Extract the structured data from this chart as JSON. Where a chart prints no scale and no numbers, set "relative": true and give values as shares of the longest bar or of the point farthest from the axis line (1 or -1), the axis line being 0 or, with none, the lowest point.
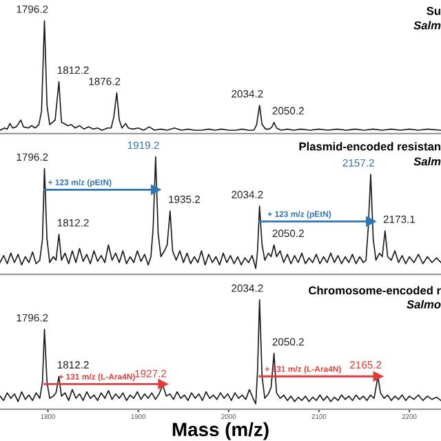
{
  "chart_data": [
    {
      "type": "line",
      "title": "Su",
      "subtitle": "Salm",
      "relative": true,
      "xlim": [
        1747,
        2235
      ],
      "tick_labels": false,
      "series": [
        {
          "color": "#1a1a1a",
          "x": [
            1747,
            1752,
            1755,
            1758,
            1761,
            1765,
            1770,
            1773,
            1778,
            1782,
            1786,
            1790,
            1793,
            1796.2,
            1799,
            1802,
            1805,
            1808,
            1812.2,
            1815,
            1818,
            1822,
            1826,
            1830,
            1835,
            1840,
            1845,
            1850,
            1855,
            1860,
            1866,
            1870,
            1873,
            1876.2,
            1879,
            1882,
            1886,
            1889,
            1894,
            1900,
            1906,
            1912,
            1918,
            1925,
            1932,
            1940,
            1948,
            1955,
            1962,
            1970,
            1978,
            1985,
            1992,
            2000,
            2008,
            2015,
            2022,
            2028,
            2031,
            2034.2,
            2037,
            2041,
            2045,
            2048,
            2050.2,
            2053,
            2058,
            2065,
            2072,
            2080,
            2090,
            2100,
            2110,
            2120,
            2130,
            2140,
            2150,
            2160,
            2170,
            2180,
            2190,
            2200,
            2210,
            2220,
            2235
          ],
          "values": [
            0.03,
            0.05,
            0.04,
            0.09,
            0.05,
            0.06,
            0.12,
            0.06,
            0.05,
            0.07,
            0.05,
            0.08,
            0.2,
            1,
            0.25,
            0.08,
            0.1,
            0.12,
            0.46,
            0.1,
            0.09,
            0.07,
            0.08,
            0.05,
            0.07,
            0.04,
            0.06,
            0.04,
            0.05,
            0.03,
            0.05,
            0.05,
            0.15,
            0.36,
            0.12,
            0.05,
            0.09,
            0.05,
            0.04,
            0.05,
            0.03,
            0.06,
            0.03,
            0.04,
            0.03,
            0.05,
            0.03,
            0.04,
            0.03,
            0.03,
            0.04,
            0.03,
            0.04,
            0.03,
            0.03,
            0.04,
            0.03,
            0.03,
            0.08,
            0.25,
            0.08,
            0.04,
            0.04,
            0.06,
            0.1,
            0.05,
            0.03,
            0.04,
            0.03,
            0.04,
            0.03,
            0.04,
            0.03,
            0.04,
            0.03,
            0.04,
            0.03,
            0.04,
            0.03,
            0.04,
            0.03,
            0.04,
            0.03,
            0.04,
            0.03
          ]
        }
      ],
      "annotations": [
        {
          "text": "1796.2",
          "x": 1796.2,
          "y": 1
        },
        {
          "text": "1812.2",
          "x": 1812.2,
          "y": 0.46
        },
        {
          "text": "1876.2",
          "x": 1876.2,
          "y": 0.36
        },
        {
          "text": "2034.2",
          "x": 2034.2,
          "y": 0.25
        },
        {
          "text": "2050.2",
          "x": 2050.2,
          "y": 0.1
        }
      ]
    },
    {
      "type": "line",
      "title": "Plasmid-encoded resistan",
      "subtitle": "Salm",
      "relative": true,
      "xlim": [
        1747,
        2235
      ],
      "tick_labels": false,
      "series": [
        {
          "color": "#1a1a1a",
          "x": [
            1747,
            1751,
            1755,
            1759,
            1763,
            1767,
            1771,
            1775,
            1779,
            1783,
            1787,
            1791,
            1794,
            1796.2,
            1799,
            1802,
            1806,
            1809,
            1812.2,
            1815,
            1819,
            1823,
            1827,
            1831,
            1835,
            1839,
            1843,
            1847,
            1851,
            1855,
            1859,
            1863,
            1867,
            1871,
            1875,
            1879,
            1883,
            1887,
            1891,
            1895,
            1899,
            1903,
            1907,
            1911,
            1914,
            1916.5,
            1919.2,
            1922,
            1925,
            1929,
            1932,
            1935.2,
            1938,
            1942,
            1946,
            1950,
            1954,
            1958,
            1962,
            1966,
            1970,
            1974,
            1978,
            1982,
            1986,
            1990,
            1994,
            1998,
            2002,
            2006,
            2010,
            2014,
            2018,
            2022,
            2026,
            2030,
            2032,
            2034.2,
            2037,
            2040,
            2044,
            2047,
            2050.2,
            2053,
            2057,
            2061,
            2065,
            2069,
            2073,
            2077,
            2081,
            2085,
            2089,
            2093,
            2097,
            2101,
            2105,
            2109,
            2113,
            2117,
            2121,
            2125,
            2129,
            2133,
            2137,
            2141,
            2145,
            2149,
            2152,
            2154.5,
            2157.2,
            2160,
            2163,
            2167,
            2170,
            2173.1,
            2176,
            2180,
            2184,
            2188,
            2192,
            2196,
            2200,
            2205,
            2210,
            2215,
            2220,
            2225,
            2230,
            2235
          ],
          "values": [
            0.1,
            0.16,
            0.09,
            0.18,
            0.1,
            0.17,
            0.08,
            0.15,
            0.1,
            0.19,
            0.09,
            0.12,
            0.3,
            0.9,
            0.3,
            0.1,
            0.15,
            0.12,
            0.34,
            0.12,
            0.18,
            0.09,
            0.2,
            0.1,
            0.22,
            0.11,
            0.17,
            0.09,
            0.2,
            0.11,
            0.16,
            0.1,
            0.25,
            0.12,
            0.18,
            0.1,
            0.2,
            0.09,
            0.15,
            0.1,
            0.2,
            0.11,
            0.17,
            0.08,
            0.15,
            0.4,
            1,
            0.35,
            0.15,
            0.2,
            0.25,
            0.54,
            0.2,
            0.12,
            0.2,
            0.1,
            0.18,
            0.09,
            0.15,
            0.1,
            0.2,
            0.08,
            0.17,
            0.1,
            0.15,
            0.08,
            0.18,
            0.1,
            0.16,
            0.09,
            0.15,
            0.08,
            0.14,
            0.1,
            0.16,
            0.05,
            0.2,
            0.58,
            0.25,
            0.12,
            0.18,
            0.15,
            0.25,
            0.15,
            0.2,
            0.1,
            0.17,
            0.09,
            0.16,
            0.1,
            0.18,
            0.09,
            0.14,
            0.1,
            0.17,
            0.09,
            0.15,
            0.1,
            0.18,
            0.1,
            0.16,
            0.09,
            0.15,
            0.1,
            0.17,
            0.09,
            0.15,
            0.1,
            0.12,
            0.4,
            0.85,
            0.3,
            0.12,
            0.18,
            0.15,
            0.37,
            0.15,
            0.12,
            0.2,
            0.1,
            0.16,
            0.09,
            0.15,
            0.1,
            0.17,
            0.09,
            0.15,
            0.1,
            0.14,
            0.1
          ]
        },
        {
          "type": "line",
          "color": "#2e75b6",
          "marker": "triangle",
          "x": [
            1796.2,
            1919.2
          ],
          "values": [
            0.72,
            0.72
          ]
        },
        {
          "type": "line",
          "color": "#2e75b6",
          "marker": "triangle",
          "x": [
            2034.2,
            2157.2
          ],
          "values": [
            0.45,
            0.45
          ]
        }
      ],
      "annotations": [
        {
          "text": "1796.2",
          "x": 1796.2,
          "y": 0.9
        },
        {
          "text": "1812.2",
          "x": 1812.2,
          "y": 0.34
        },
        {
          "text": "1919.2",
          "x": 1919.2,
          "y": 1
        },
        {
          "text": "1935.2",
          "x": 1935.2,
          "y": 0.54
        },
        {
          "text": "2034.2",
          "x": 2034.2,
          "y": 0.58
        },
        {
          "text": "2050.2",
          "x": 2050.2,
          "y": 0.25
        },
        {
          "text": "2157.2",
          "x": 2157.2,
          "y": 0.85
        },
        {
          "text": "2173.1",
          "x": 2173.1,
          "y": 0.37
        },
        {
          "text": "+ 123 m/z (pEtN)",
          "x": 1800,
          "y": 0.72
        },
        {
          "text": "+ 123 m/z (pEtN)",
          "x": 2043,
          "y": 0.45
        }
      ]
    },
    {
      "type": "line",
      "title": "Chromosome-encoded r",
      "subtitle": "Salmo",
      "xlabel": "Mass (m/z)",
      "relative": true,
      "xlim": [
        1747,
        2235
      ],
      "xticks": [
        1800,
        1900,
        2000,
        2100,
        2200
      ],
      "tick_labels": "x",
      "series": [
        {
          "color": "#1a1a1a",
          "x": [
            1747,
            1751,
            1755,
            1759,
            1763,
            1767,
            1771,
            1775,
            1779,
            1783,
            1787,
            1791,
            1794,
            1796.2,
            1799,
            1802,
            1806,
            1809,
            1812.2,
            1815,
            1819,
            1823,
            1827,
            1831,
            1835,
            1839,
            1843,
            1847,
            1851,
            1855,
            1859,
            1863,
            1867,
            1871,
            1875,
            1879,
            1883,
            1887,
            1891,
            1895,
            1899,
            1903,
            1907,
            1911,
            1915,
            1919,
            1923,
            1927.2,
            1931,
            1935,
            1939,
            1943,
            1947,
            1951,
            1955,
            1959,
            1963,
            1967,
            1971,
            1975,
            1979,
            1983,
            1987,
            1991,
            1995,
            1999,
            2003,
            2007,
            2011,
            2015,
            2019,
            2023,
            2027,
            2030,
            2032,
            2034.2,
            2037,
            2040,
            2044,
            2047,
            2050.2,
            2053,
            2057,
            2061,
            2065,
            2069,
            2073,
            2077,
            2081,
            2085,
            2089,
            2093,
            2097,
            2101,
            2105,
            2109,
            2113,
            2117,
            2121,
            2125,
            2129,
            2133,
            2137,
            2141,
            2145,
            2149,
            2153,
            2157,
            2161,
            2165.2,
            2168,
            2172,
            2176,
            2180,
            2184,
            2188,
            2192,
            2196,
            2200,
            2205,
            2210,
            2215,
            2220,
            2225,
            2230,
            2235
          ],
          "values": [
            0.12,
            0.08,
            0.15,
            0.1,
            0.14,
            0.07,
            0.16,
            0.09,
            0.13,
            0.08,
            0.15,
            0.1,
            0.25,
            0.73,
            0.25,
            0.1,
            0.12,
            0.15,
            0.3,
            0.12,
            0.15,
            0.08,
            0.18,
            0.1,
            0.14,
            0.08,
            0.16,
            0.1,
            0.13,
            0.08,
            0.15,
            0.1,
            0.17,
            0.09,
            0.14,
            0.1,
            0.15,
            0.08,
            0.13,
            0.1,
            0.16,
            0.09,
            0.14,
            0.1,
            0.15,
            0.09,
            0.14,
            0.22,
            0.12,
            0.14,
            0.09,
            0.16,
            0.1,
            0.13,
            0.08,
            0.15,
            0.1,
            0.14,
            0.08,
            0.16,
            0.1,
            0.13,
            0.09,
            0.15,
            0.1,
            0.14,
            0.08,
            0.15,
            0.1,
            0.13,
            0.09,
            0.18,
            0.1,
            0.05,
            0.35,
            1,
            0.3,
            0.1,
            0.14,
            0.2,
            0.51,
            0.15,
            0.1,
            0.13,
            0.08,
            0.12,
            0.07,
            0.11,
            0.08,
            0.12,
            0.07,
            0.11,
            0.08,
            0.13,
            0.08,
            0.12,
            0.07,
            0.11,
            0.08,
            0.13,
            0.09,
            0.12,
            0.08,
            0.13,
            0.09,
            0.12,
            0.08,
            0.13,
            0.1,
            0.3,
            0.15,
            0.1,
            0.13,
            0.08,
            0.12,
            0.09,
            0.13,
            0.08,
            0.12,
            0.09,
            0.13,
            0.08,
            0.12,
            0.09,
            0.11,
            0.08
          ]
        },
        {
          "type": "line",
          "color": "#e03c3c",
          "marker": "triangle",
          "x": [
            1796.2,
            1927.2
          ],
          "values": [
            0.23,
            0.23
          ]
        },
        {
          "type": "line",
          "color": "#e03c3c",
          "marker": "triangle",
          "x": [
            2034.2,
            2165.2
          ],
          "values": [
            0.3,
            0.3
          ]
        }
      ],
      "annotations": [
        {
          "text": "1796.2",
          "x": 1796.2,
          "y": 0.73
        },
        {
          "text": "1812.2",
          "x": 1812.2,
          "y": 0.3
        },
        {
          "text": "1927.2",
          "x": 1927.2,
          "y": 0.22
        },
        {
          "text": "2034.2",
          "x": 2034.2,
          "y": 1
        },
        {
          "text": "2050.2",
          "x": 2050.2,
          "y": 0.51
        },
        {
          "text": "2165.2",
          "x": 2165.2,
          "y": 0.3
        },
        {
          "text": "+ 131 m/z (L-Ara4N)",
          "x": 1812,
          "y": 0.23
        },
        {
          "text": "+ 131 m/z (L-Ara4N)",
          "x": 2040,
          "y": 0.3
        }
      ]
    }
  ]
}
